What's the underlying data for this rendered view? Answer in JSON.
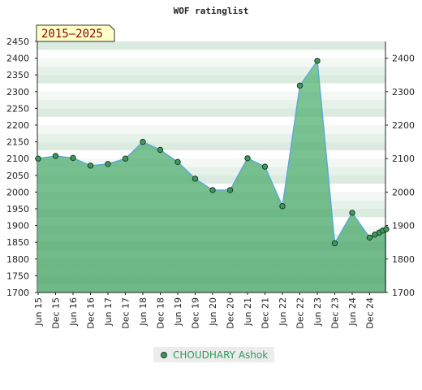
{
  "chart_data": {
    "type": "area",
    "title": "WOF ratinglist",
    "period_label": "2015–2025",
    "ylim": [
      1700,
      2450
    ],
    "y_ticks_left": [
      1700,
      1750,
      1800,
      1850,
      1900,
      1950,
      2000,
      2050,
      2100,
      2150,
      2200,
      2250,
      2300,
      2350,
      2400,
      2450
    ],
    "y_ticks_right": [
      1700,
      1800,
      1900,
      2000,
      2100,
      2200,
      2300,
      2400
    ],
    "x_tick_labels": [
      "Jun 15",
      "Dec 15",
      "Jun 16",
      "Dec 16",
      "Jun 17",
      "Dec 17",
      "Jun 18",
      "Dec 18",
      "Jun 19",
      "Dec 19",
      "Jun 20",
      "Dec 20",
      "Jun 21",
      "Dec 21",
      "Jun 22",
      "Dec 22",
      "Jun 23",
      "Dec 23",
      "Jun 24",
      "Dec 24"
    ],
    "grid": true,
    "legend_position": "bottom",
    "series": [
      {
        "name": "CHOUDHARY Ashok",
        "color": "#3d9a5c",
        "points": [
          {
            "i": 0,
            "y": 2100
          },
          {
            "i": 1,
            "y": 2108
          },
          {
            "i": 2,
            "y": 2102
          },
          {
            "i": 3,
            "y": 2079
          },
          {
            "i": 4,
            "y": 2084
          },
          {
            "i": 5,
            "y": 2100
          },
          {
            "i": 6,
            "y": 2150
          },
          {
            "i": 7,
            "y": 2126
          },
          {
            "i": 8,
            "y": 2090
          },
          {
            "i": 9,
            "y": 2040
          },
          {
            "i": 10,
            "y": 2006
          },
          {
            "i": 11,
            "y": 2006
          },
          {
            "i": 12,
            "y": 2101
          },
          {
            "i": 13,
            "y": 2076
          },
          {
            "i": 14,
            "y": 1958
          },
          {
            "i": 15,
            "y": 2318
          },
          {
            "i": 16,
            "y": 2392
          },
          {
            "i": 17,
            "y": 1847
          },
          {
            "i": 18,
            "y": 1938
          },
          {
            "i": 19,
            "y": 1864
          },
          {
            "i": 19.3,
            "y": 1873
          },
          {
            "i": 19.55,
            "y": 1879
          },
          {
            "i": 19.75,
            "y": 1885
          },
          {
            "i": 19.95,
            "y": 1889
          }
        ]
      }
    ]
  },
  "legend": {
    "label": "CHOUDHARY Ashok"
  },
  "colors": {
    "line": "#5aa9d6",
    "area": "#7cc596",
    "marker": "#3d9a5c",
    "badge_bg": "#ffffc8",
    "badge_text": "#8b0000"
  }
}
